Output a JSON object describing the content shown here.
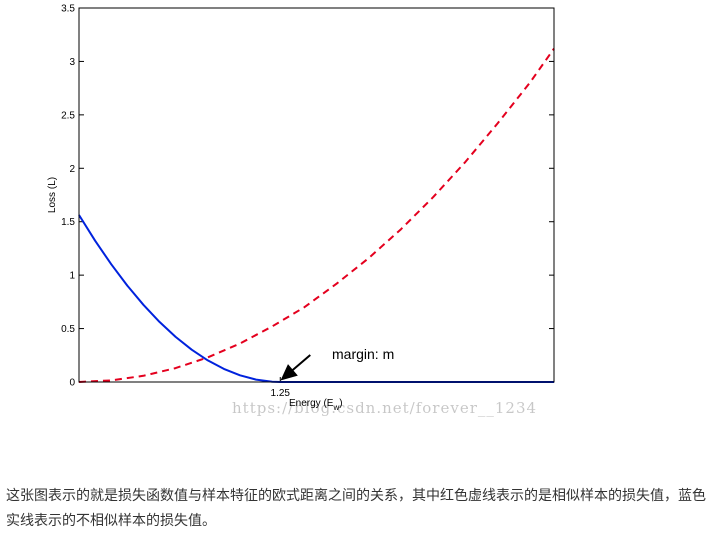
{
  "chart_data": {
    "type": "line",
    "title": "",
    "xlabel": "Energy (E",
    "xlabel_sub": "w",
    "xlabel_close": ")",
    "ylabel": "Loss (L)",
    "xlim": [
      0,
      2.95
    ],
    "ylim": [
      0,
      3.5
    ],
    "y_ticks": [
      0,
      0.5,
      1,
      1.5,
      2,
      2.5,
      3,
      3.5
    ],
    "y_tick_labels": [
      "0",
      "0.5",
      "1",
      "1.5",
      "2",
      "2.5",
      "3",
      "3.5"
    ],
    "x_ticks": [
      1.25
    ],
    "x_tick_labels": [
      "1.25"
    ],
    "grid": false,
    "series": [
      {
        "color": "#e4001e",
        "style": "dashed",
        "x": [
          0,
          0.2,
          0.4,
          0.6,
          0.8,
          1.0,
          1.2,
          1.4,
          1.6,
          1.8,
          2.0,
          2.2,
          2.4,
          2.6,
          2.8,
          2.95
        ],
        "values": [
          0,
          0.015,
          0.058,
          0.13,
          0.23,
          0.36,
          0.52,
          0.7,
          0.92,
          1.16,
          1.43,
          1.73,
          2.06,
          2.42,
          2.8,
          3.12
        ]
      },
      {
        "color": "#0022dd",
        "style": "solid",
        "x": [
          0,
          0.1,
          0.2,
          0.3,
          0.4,
          0.5,
          0.6,
          0.7,
          0.8,
          0.9,
          1.0,
          1.1,
          1.2,
          1.25,
          1.5,
          2.0,
          2.5,
          2.95
        ],
        "values": [
          1.5625,
          1.3225,
          1.1025,
          0.9025,
          0.7225,
          0.5625,
          0.4225,
          0.3025,
          0.2025,
          0.1225,
          0.0625,
          0.0225,
          0.0025,
          0,
          0,
          0,
          0,
          0
        ]
      }
    ],
    "annotations": [
      {
        "text": "margin: m",
        "x": 1.25,
        "y": 0
      }
    ]
  },
  "watermark": "https://blog.csdn.net/forever__1234",
  "caption": "这张图表示的就是损失函数值与样本特征的欧式距离之间的关系，其中红色虚线表示的是相似样本的损失值，蓝色实线表示的不相似样本的损失值。"
}
